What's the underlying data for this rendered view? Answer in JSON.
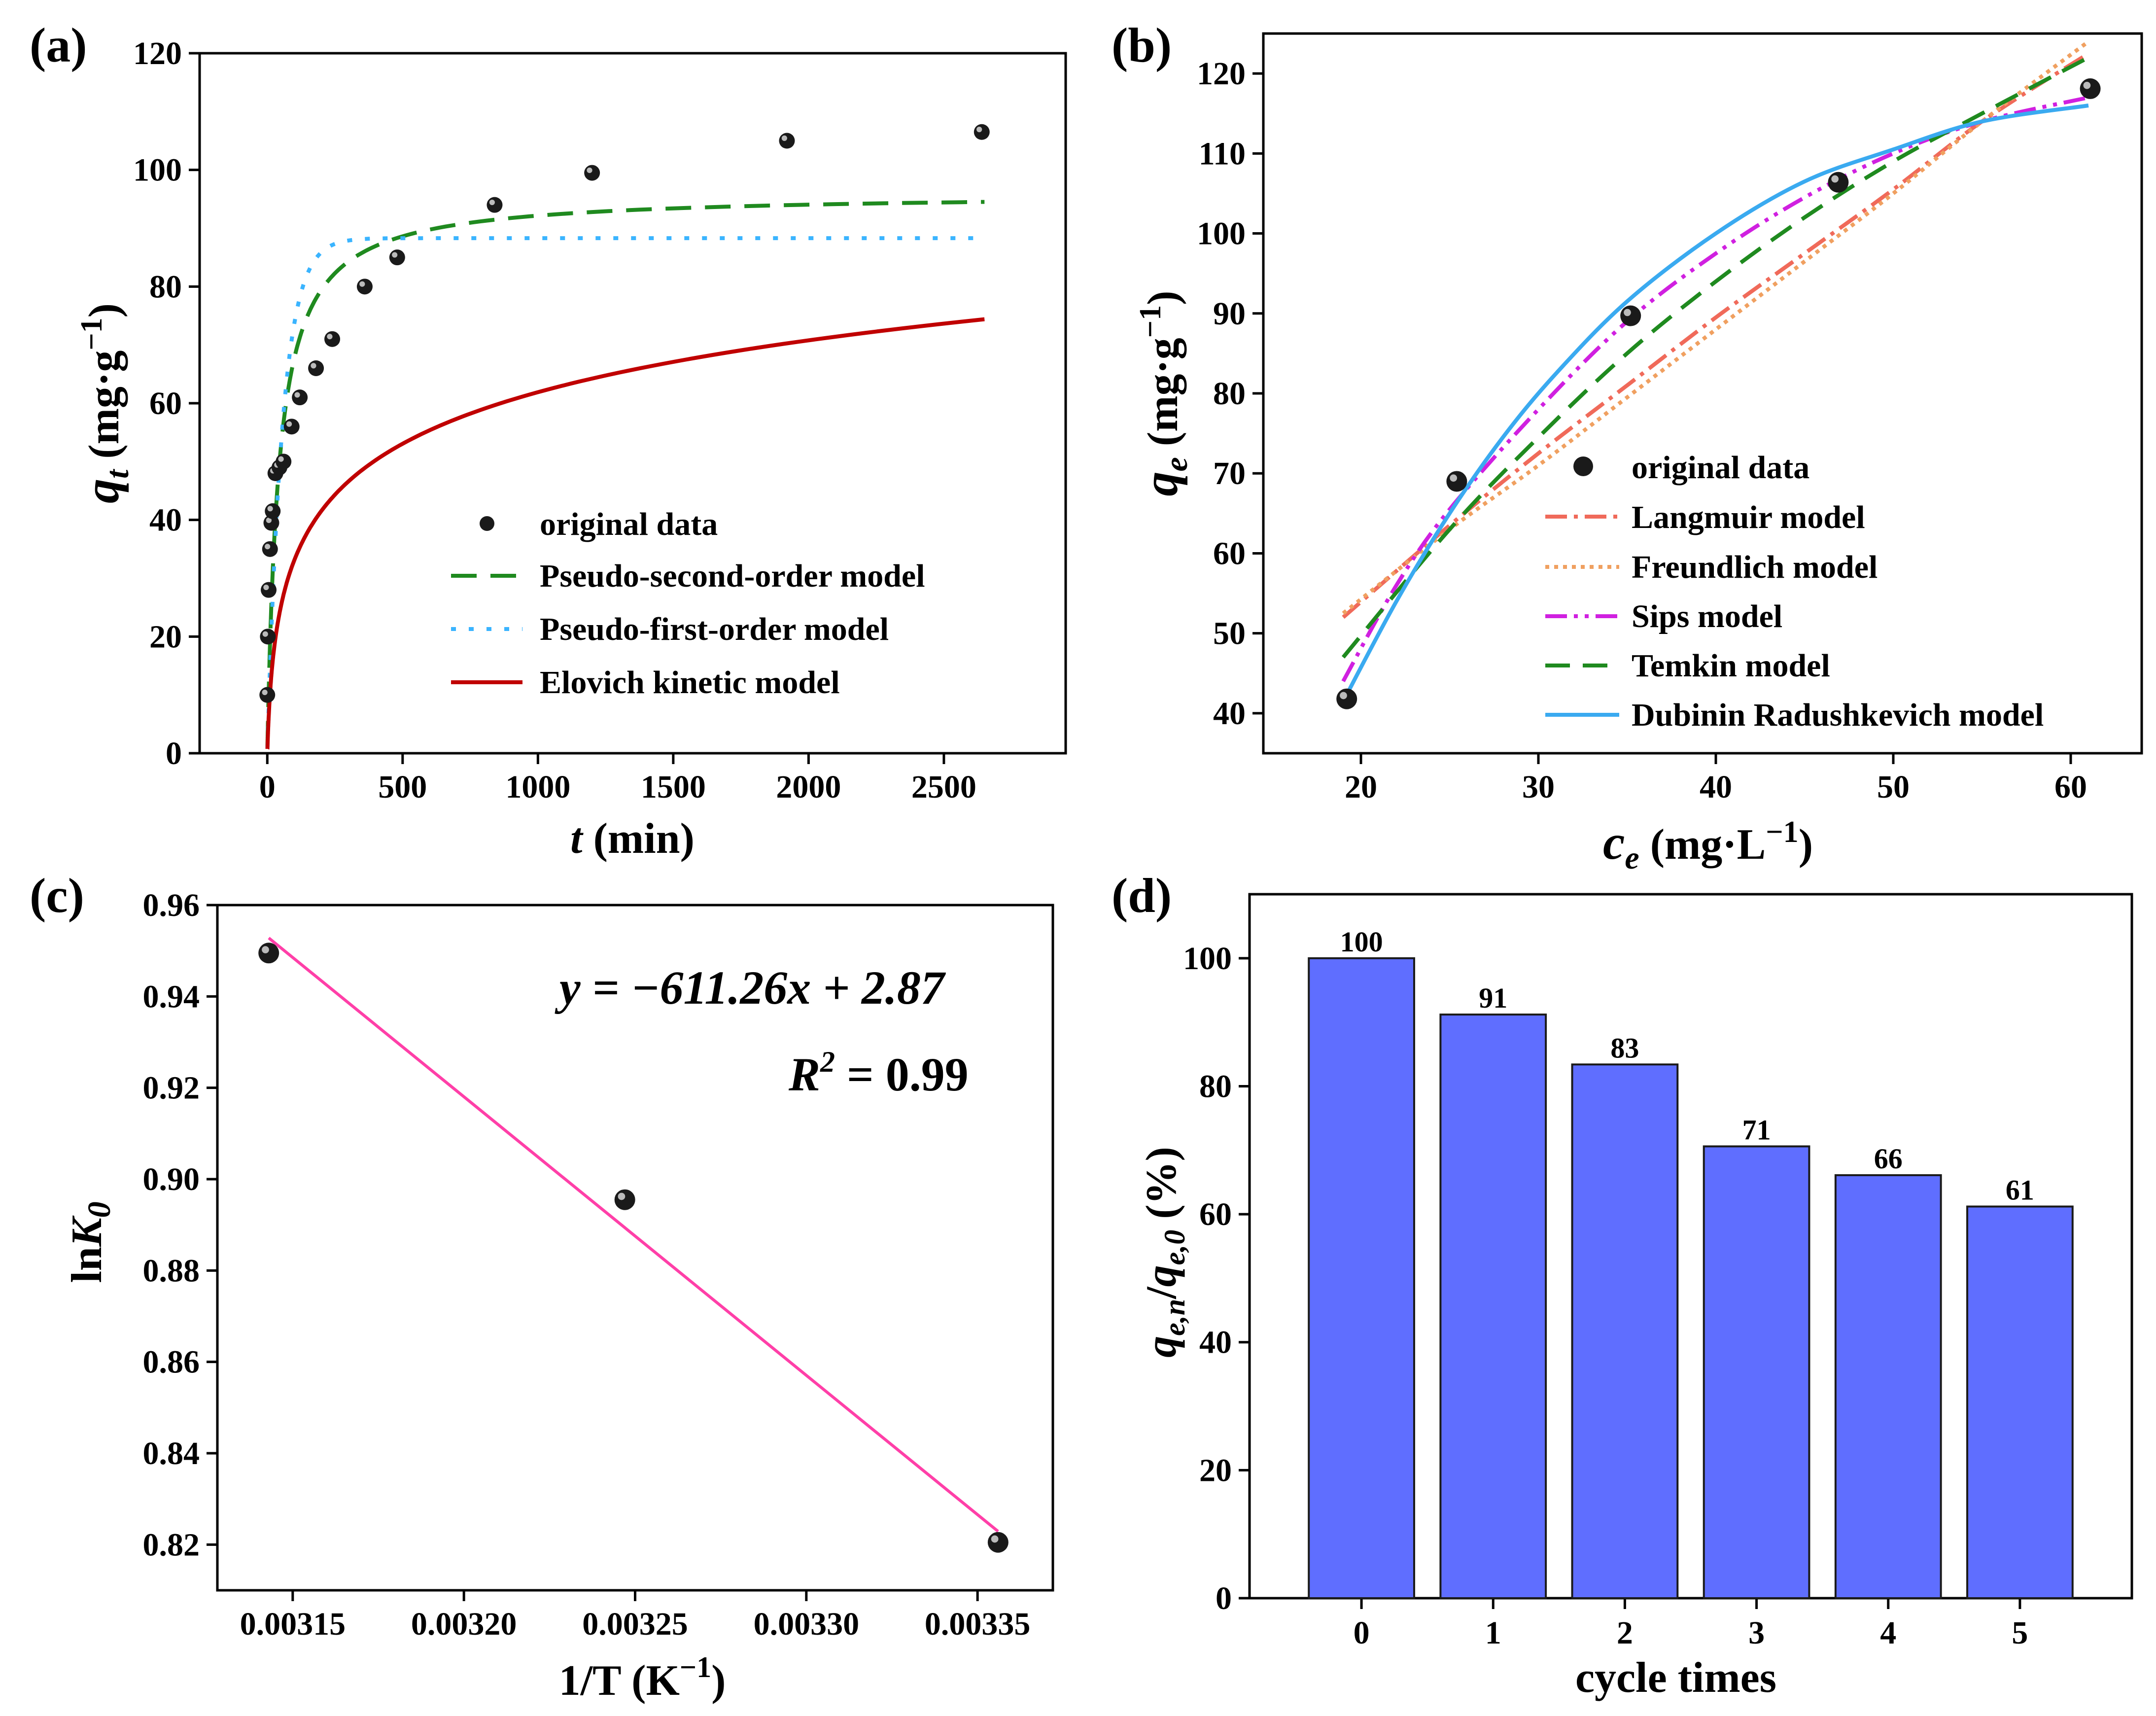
{
  "chart_data": [
    {
      "panel": "(a)",
      "type": "scatter",
      "xlabel_var": "t",
      "xlabel_unit": " (min)",
      "ylabel_var": "q",
      "ylabel_sub": "t",
      "ylabel_unit": " (mg·g",
      "ylabel_exp": "−1",
      "ylabel_close": ")",
      "xlim": [
        -250,
        2950
      ],
      "ylim": [
        0,
        120
      ],
      "xticks": [
        "0",
        "500",
        "1000",
        "1500",
        "2000",
        "2500"
      ],
      "xtick_values": [
        0,
        500,
        1000,
        1500,
        2000,
        2500
      ],
      "yticks": [
        "0",
        "20",
        "40",
        "60",
        "80",
        "100",
        "120"
      ],
      "ytick_values": [
        0,
        20,
        40,
        60,
        80,
        100,
        120
      ],
      "legend": {
        "position": "lower-right",
        "entries": [
          "original data",
          "Pseudo-second-order model",
          "Pseudo-first-order model",
          "Elovich kinetic model"
        ]
      },
      "series": [
        {
          "name": "original data",
          "kind": "points",
          "x": [
            0,
            2,
            5,
            10,
            15,
            20,
            30,
            45,
            60,
            90,
            120,
            180,
            240,
            360,
            480,
            840,
            1200,
            1920,
            2640
          ],
          "y": [
            10,
            20,
            28,
            35,
            39.5,
            41.5,
            48,
            49,
            50,
            56,
            61,
            66,
            71,
            80,
            85,
            94,
            99.5,
            105,
            106.5
          ]
        },
        {
          "name": "Pseudo-second-order model",
          "kind": "curve",
          "color": "#1f8a1f",
          "dash": "52 28",
          "model": "pso",
          "params": {
            "qe": 96,
            "k": 0.00025
          }
        },
        {
          "name": "Pseudo-first-order model",
          "kind": "curve",
          "color": "#3ab4ff",
          "dash": "10 26",
          "model": "pfo",
          "params": {
            "qe": 88.3,
            "k": 0.018
          }
        },
        {
          "name": "Elovich kinetic model",
          "kind": "curve",
          "color": "#c00000",
          "dash": "",
          "model": "elovich",
          "params": {
            "a": 1.55,
            "b": 0.0775
          }
        }
      ]
    },
    {
      "panel": "(b)",
      "type": "scatter",
      "xlabel_var": "c",
      "xlabel_sub": "e",
      "xlabel_unit": " (mg·L",
      "xlabel_exp": "−1",
      "xlabel_close": ")",
      "ylabel_var": "q",
      "ylabel_sub": "e",
      "ylabel_unit": " (mg·g",
      "ylabel_exp": "−1",
      "ylabel_close": ")",
      "xlim": [
        14.5,
        64
      ],
      "ylim": [
        35,
        125
      ],
      "xticks": [
        "20",
        "30",
        "40",
        "50",
        "60"
      ],
      "xtick_values": [
        20,
        30,
        40,
        50,
        60
      ],
      "yticks": [
        "40",
        "50",
        "60",
        "70",
        "80",
        "90",
        "100",
        "110",
        "120"
      ],
      "ytick_values": [
        40,
        50,
        60,
        70,
        80,
        90,
        100,
        110,
        120
      ],
      "legend": {
        "position": "lower-right",
        "entries": [
          "original data",
          "Langmuir model",
          "Freundlich model",
          "Sips model",
          "Temkin model",
          "Dubinin Radushkevich model"
        ]
      },
      "series": [
        {
          "name": "original data",
          "kind": "points",
          "x": [
            19.2,
            25.4,
            35.2,
            46.9,
            61.1
          ],
          "y": [
            41.8,
            69.0,
            89.7,
            106.4,
            118.1
          ]
        },
        {
          "name": "Langmuir model",
          "kind": "curve",
          "color": "#f06a5a",
          "dash": "44 14 8 14",
          "x": [
            19,
            25,
            30,
            35,
            40,
            45,
            50,
            55,
            61
          ],
          "y": [
            52,
            63.5,
            72.5,
            81,
            89.5,
            97.5,
            105.5,
            114,
            122.5
          ]
        },
        {
          "name": "Freundlich model",
          "kind": "curve",
          "color": "#f0a060",
          "dash": "8 10",
          "x": [
            19,
            25,
            30,
            35,
            40,
            45,
            50,
            55,
            61
          ],
          "y": [
            52.5,
            63,
            71,
            79.5,
            88,
            96.5,
            105,
            114,
            124
          ]
        },
        {
          "name": "Sips model",
          "kind": "curve",
          "color": "#d020e0",
          "dash": "44 14 8 14 8 14",
          "x": [
            19,
            22,
            25,
            30,
            35,
            40,
            45,
            50,
            55,
            61
          ],
          "y": [
            44,
            56,
            65.5,
            78,
            89,
            97.5,
            104.5,
            110,
            114,
            117
          ]
        },
        {
          "name": "Temkin model",
          "kind": "curve",
          "color": "#1f8a1f",
          "dash": "50 26",
          "x": [
            19,
            25,
            30,
            35,
            40,
            45,
            50,
            55,
            61
          ],
          "y": [
            47,
            63,
            74.5,
            85,
            94,
            102,
            109,
            115,
            122
          ]
        },
        {
          "name": "Dubinin Radushkevich model",
          "kind": "curve",
          "color": "#3aaaf0",
          "dash": "",
          "x": [
            19,
            22,
            25,
            28,
            31,
            35,
            40,
            45,
            50,
            55,
            61
          ],
          "y": [
            41.5,
            54,
            65,
            74.5,
            82.5,
            91.5,
            100,
            106.5,
            110.5,
            114,
            116
          ]
        }
      ]
    },
    {
      "panel": "(c)",
      "type": "scatter",
      "xlabel": "1/T (K",
      "xlabel_exp": "−1",
      "xlabel_close": ")",
      "ylabel": "ln",
      "ylabel_var": "K",
      "ylabel_sub": "0",
      "xlim": [
        0.003128,
        0.003372
      ],
      "ylim": [
        0.81,
        0.96
      ],
      "xticks": [
        "0.00315",
        "0.00320",
        "0.00325",
        "0.00330",
        "0.00335"
      ],
      "xtick_values": [
        0.00315,
        0.0032,
        0.00325,
        0.0033,
        0.00335
      ],
      "yticks": [
        "0.82",
        "0.84",
        "0.86",
        "0.88",
        "0.90",
        "0.92",
        "0.94",
        "0.96"
      ],
      "ytick_values": [
        0.82,
        0.84,
        0.86,
        0.88,
        0.9,
        0.92,
        0.94,
        0.96
      ],
      "annotations": {
        "equation": "y = −611.26x + 2.87",
        "r2_prefix": "R",
        "r2_sup": "2",
        "r2_value": " = 0.99"
      },
      "series": [
        {
          "name": "data",
          "kind": "points",
          "x": [
            0.003143,
            0.003247,
            0.003356
          ],
          "y": [
            0.9495,
            0.8955,
            0.8205
          ]
        },
        {
          "name": "fit",
          "kind": "line",
          "color": "#ff3fa8",
          "x": [
            0.003143,
            0.003356
          ],
          "y": [
            0.9528,
            0.8229
          ]
        }
      ]
    },
    {
      "panel": "(d)",
      "type": "bar",
      "xlabel": "cycle times",
      "ylabel_var": "q",
      "ylabel_sub1": "e,n",
      "ylabel_slash": "/",
      "ylabel_var2": "q",
      "ylabel_sub2": "e,0",
      "ylabel_unit": " (%)",
      "categories": [
        "0",
        "1",
        "2",
        "3",
        "4",
        "5"
      ],
      "values": [
        100,
        91,
        83,
        71,
        66,
        61
      ],
      "bar_values": [
        100,
        91.2,
        83.4,
        70.6,
        66.1,
        61.2
      ],
      "ylim": [
        0,
        110
      ],
      "yticks": [
        "0",
        "20",
        "40",
        "60",
        "80",
        "100"
      ],
      "ytick_values": [
        0,
        20,
        40,
        60,
        80,
        100
      ],
      "bar_color": "#5f6eff"
    }
  ]
}
